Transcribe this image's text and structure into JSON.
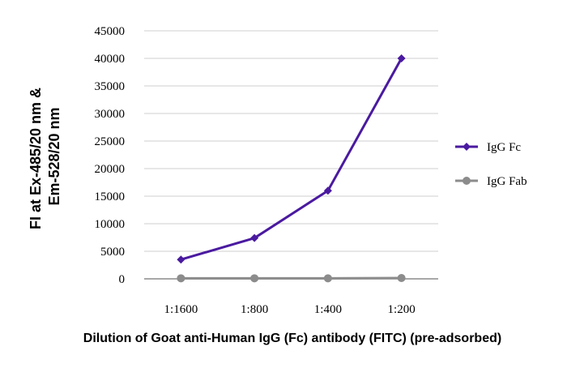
{
  "chart_data": {
    "type": "line",
    "title": "",
    "xlabel": "Dilution of Goat anti-Human IgG (Fc) antibody (FITC) (pre-adsorbed)",
    "ylabel_lines": [
      "FI at Ex-485/20 nm &",
      "Em-528/20 nm"
    ],
    "categories": [
      "1:1600",
      "1:800",
      "1:400",
      "1:200"
    ],
    "ylim": [
      0,
      45000
    ],
    "yticks": [
      0,
      5000,
      10000,
      15000,
      20000,
      25000,
      30000,
      35000,
      40000,
      45000
    ],
    "grid": true,
    "legend_position": "right",
    "series": [
      {
        "name": "IgG Fc",
        "values": [
          3500,
          7400,
          16000,
          40000
        ],
        "color": "#4a1aa0",
        "marker": "diamond"
      },
      {
        "name": "IgG Fab",
        "values": [
          100,
          100,
          100,
          150
        ],
        "color": "#8c8c8c",
        "marker": "circle"
      }
    ]
  }
}
